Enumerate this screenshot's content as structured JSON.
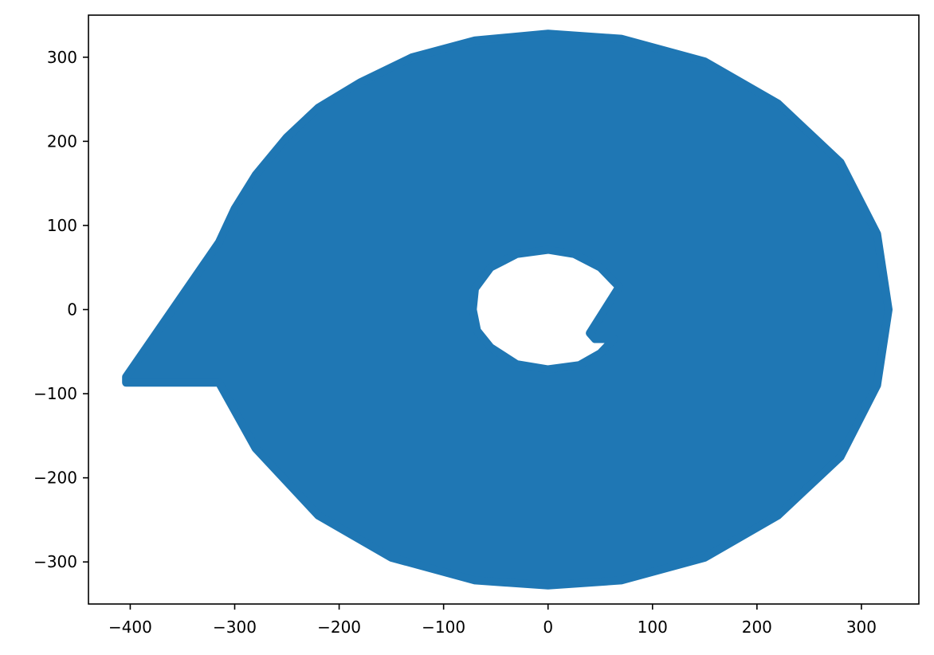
{
  "chart_data": {
    "type": "scatter",
    "title": "",
    "xlabel": "",
    "ylabel": "",
    "xlim": [
      -440,
      355
    ],
    "ylim": [
      -350,
      350
    ],
    "grid": false,
    "legend": "none",
    "series": [
      {
        "color": "#1f77b4",
        "shape": "filled spiral band",
        "outer_boundary": [
          [
            -404,
            -80
          ],
          [
            -315,
            80
          ],
          [
            -300,
            120
          ],
          [
            -280,
            160
          ],
          [
            -250,
            205
          ],
          [
            -220,
            240
          ],
          [
            -180,
            270
          ],
          [
            -130,
            300
          ],
          [
            -70,
            320
          ],
          [
            0,
            328
          ],
          [
            70,
            322
          ],
          [
            150,
            295
          ],
          [
            220,
            245
          ],
          [
            280,
            175
          ],
          [
            315,
            90
          ],
          [
            326,
            0
          ],
          [
            315,
            -90
          ],
          [
            280,
            -175
          ],
          [
            220,
            -245
          ],
          [
            150,
            -295
          ],
          [
            70,
            -322
          ],
          [
            0,
            -328
          ],
          [
            -70,
            -322
          ],
          [
            -150,
            -295
          ],
          [
            -220,
            -245
          ],
          [
            -280,
            -165
          ],
          [
            -315,
            -87
          ],
          [
            -404,
            -87
          ]
        ],
        "inner_hole_boundary": [
          [
            68,
            27
          ],
          [
            50,
            50
          ],
          [
            25,
            66
          ],
          [
            0,
            71
          ],
          [
            -30,
            66
          ],
          [
            -55,
            50
          ],
          [
            -70,
            25
          ],
          [
            -72,
            0
          ],
          [
            -68,
            -25
          ],
          [
            -55,
            -45
          ],
          [
            -30,
            -65
          ],
          [
            0,
            -71
          ],
          [
            30,
            -66
          ],
          [
            50,
            -52
          ],
          [
            63,
            -35
          ],
          [
            45,
            -35
          ],
          [
            40,
            -28
          ]
        ]
      }
    ],
    "x_ticks": [
      {
        "value": -400,
        "label": "−400"
      },
      {
        "value": -300,
        "label": "−300"
      },
      {
        "value": -200,
        "label": "−200"
      },
      {
        "value": -100,
        "label": "−100"
      },
      {
        "value": 0,
        "label": "0"
      },
      {
        "value": 100,
        "label": "100"
      },
      {
        "value": 200,
        "label": "200"
      },
      {
        "value": 300,
        "label": "300"
      }
    ],
    "y_ticks": [
      {
        "value": 300,
        "label": "300"
      },
      {
        "value": 200,
        "label": "200"
      },
      {
        "value": 100,
        "label": "100"
      },
      {
        "value": 0,
        "label": "0"
      },
      {
        "value": -100,
        "label": "−100"
      },
      {
        "value": -200,
        "label": "−200"
      },
      {
        "value": -300,
        "label": "−300"
      }
    ]
  }
}
